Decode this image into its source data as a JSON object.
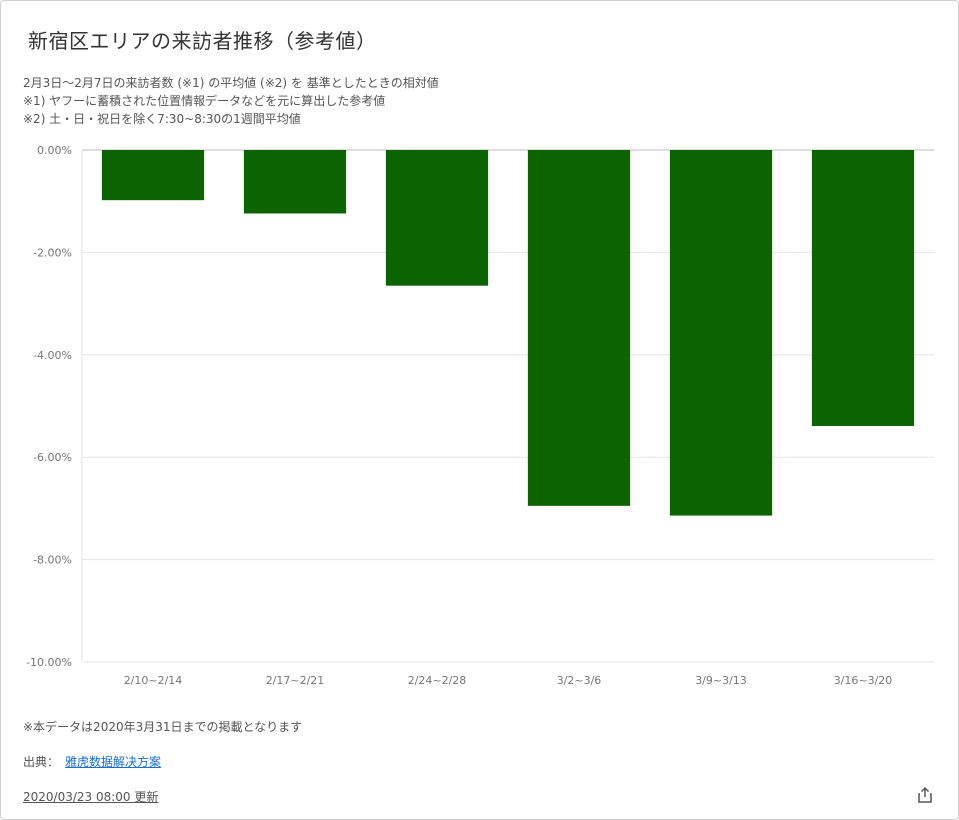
{
  "title": "新宿区エリアの来訪者推移（参考値）",
  "notes": [
    "2月3日〜2月7日の来訪者数 (※1) の平均値 (※2) を 基準としたときの相対値",
    "※1) ヤフーに蓄積された位置情報データなどを元に算出した参考値",
    "※2) 土・日・祝日を除く7:30~8:30の1週間平均値"
  ],
  "footnote": "※本データは2020年3月31日までの掲載となります",
  "source": {
    "label": "出典：",
    "link_text": "雅虎数据解决方案"
  },
  "updated": "2020/03/23 08:00 更新",
  "icons": {
    "share": "share-icon"
  },
  "colors": {
    "bar": "#0b6400",
    "grid": "#e6e6e6",
    "axis": "#bdbdbd",
    "tick_text": "#777777"
  },
  "chart_data": {
    "type": "bar",
    "categories": [
      "2/10~2/14",
      "2/17~2/21",
      "2/24~2/28",
      "3/2~3/6",
      "3/9~3/13",
      "3/16~3/20"
    ],
    "values": [
      -0.98,
      -1.24,
      -2.65,
      -6.95,
      -7.14,
      -5.39
    ],
    "yticks": [
      "0.00%",
      "-2.00%",
      "-4.00%",
      "-6.00%",
      "-8.00%",
      "-10.00%"
    ],
    "ylim": [
      -10,
      0
    ],
    "grid": true,
    "legend": "none"
  }
}
